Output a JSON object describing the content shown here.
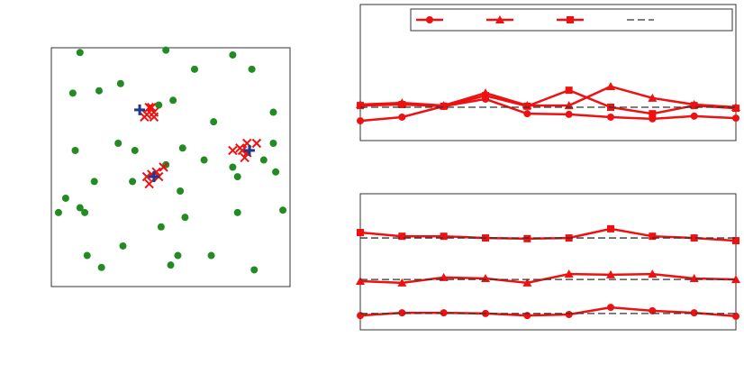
{
  "chart_data": [
    {
      "type": "scatter",
      "xlim": [
        0,
        10
      ],
      "ylim": [
        0,
        10
      ],
      "series": [
        {
          "color": "#228b22",
          "marker": "circle",
          "x": [
            1.2,
            4.8,
            7.6,
            8.4,
            6.0,
            2.9,
            2.0,
            0.9,
            5.1,
            4.5,
            9.3,
            6.8,
            2.8,
            3.5,
            1.0,
            5.5,
            9.3,
            6.4,
            8.9,
            7.6,
            4.8,
            7.8,
            9.4,
            1.8,
            3.4,
            5.4,
            0.6,
            1.2,
            1.4,
            0.3,
            7.8,
            9.7,
            5.6,
            4.6,
            3.0,
            1.5,
            5.3,
            6.7,
            2.1,
            5.0,
            8.5
          ],
          "y": [
            9.8,
            9.9,
            9.7,
            9.1,
            9.1,
            8.5,
            8.2,
            8.1,
            7.8,
            7.6,
            7.3,
            6.9,
            6.0,
            5.7,
            5.7,
            5.8,
            6.0,
            5.3,
            5.3,
            5.0,
            5.1,
            4.6,
            4.8,
            4.4,
            4.4,
            4.0,
            3.7,
            3.3,
            3.1,
            3.1,
            3.1,
            3.2,
            2.9,
            2.5,
            1.7,
            1.3,
            1.3,
            1.3,
            0.8,
            0.9,
            0.7
          ]
        },
        {
          "color": "#ee1111",
          "marker": "x",
          "x": [
            3.9,
            4.1,
            4.3,
            4.0,
            4.3,
            4.2,
            4.0,
            4.2,
            4.4,
            4.1,
            4.7,
            4.5,
            7.6,
            7.9,
            8.2,
            8.1,
            8.6,
            8.2,
            8.0
          ],
          "y": [
            7.1,
            7.5,
            7.3,
            7.2,
            7.1,
            7.5,
            4.6,
            4.7,
            4.8,
            4.3,
            5.0,
            4.6,
            5.7,
            5.8,
            6.0,
            5.4,
            6.0,
            5.6,
            5.7
          ]
        },
        {
          "color": "#1f3a8a",
          "marker": "plus",
          "x": [
            3.7,
            4.3,
            8.3
          ],
          "y": [
            7.4,
            4.6,
            5.7
          ]
        }
      ]
    },
    {
      "type": "line",
      "x": [
        1,
        2,
        3,
        4,
        5,
        6,
        7,
        8,
        9,
        10
      ],
      "xlim": [
        1,
        10
      ],
      "ylim": [
        0,
        4
      ],
      "legend": "top",
      "series": [
        {
          "color": "#ee1111",
          "marker": "circle",
          "values": [
            0.58,
            0.69,
            1.01,
            1.22,
            0.79,
            0.77,
            0.69,
            0.64,
            0.72,
            0.66
          ]
        },
        {
          "color": "#ee1111",
          "marker": "triangle",
          "values": [
            1.06,
            1.11,
            1.03,
            1.4,
            1.03,
            1.03,
            1.59,
            1.25,
            1.06,
            0.98
          ]
        },
        {
          "color": "#ee1111",
          "marker": "square",
          "values": [
            1.03,
            1.06,
            1.01,
            1.32,
            1.01,
            1.48,
            0.98,
            0.79,
            1.03,
            0.95
          ]
        },
        {
          "color": "#333333",
          "dash": true,
          "values": [
            0.98,
            0.98,
            0.98,
            0.98,
            0.98,
            0.98,
            0.98,
            0.98,
            0.98,
            0.98
          ]
        }
      ]
    },
    {
      "type": "line",
      "x": [
        1,
        2,
        3,
        4,
        5,
        6,
        7,
        8,
        9,
        10
      ],
      "xlim": [
        1,
        10
      ],
      "ylim": [
        0,
        4
      ],
      "series": [
        {
          "color": "#ee1111",
          "marker": "square",
          "values": [
            2.86,
            2.75,
            2.75,
            2.7,
            2.68,
            2.7,
            2.97,
            2.75,
            2.7,
            2.62
          ]
        },
        {
          "color": "#333333",
          "dash": true,
          "values": [
            2.7,
            2.7,
            2.7,
            2.7,
            2.7,
            2.7,
            2.7,
            2.7,
            2.7,
            2.7
          ]
        },
        {
          "color": "#ee1111",
          "marker": "triangle",
          "values": [
            1.43,
            1.38,
            1.54,
            1.51,
            1.38,
            1.64,
            1.62,
            1.64,
            1.51,
            1.48
          ]
        },
        {
          "color": "#333333",
          "dash": true,
          "values": [
            1.48,
            1.48,
            1.48,
            1.48,
            1.48,
            1.48,
            1.48,
            1.48,
            1.48,
            1.48
          ]
        },
        {
          "color": "#ee1111",
          "marker": "circle",
          "values": [
            0.42,
            0.5,
            0.5,
            0.48,
            0.42,
            0.45,
            0.66,
            0.56,
            0.5,
            0.4
          ]
        },
        {
          "color": "#333333",
          "dash": true,
          "values": [
            0.48,
            0.48,
            0.48,
            0.48,
            0.48,
            0.48,
            0.48,
            0.48,
            0.48,
            0.48
          ]
        }
      ]
    }
  ]
}
